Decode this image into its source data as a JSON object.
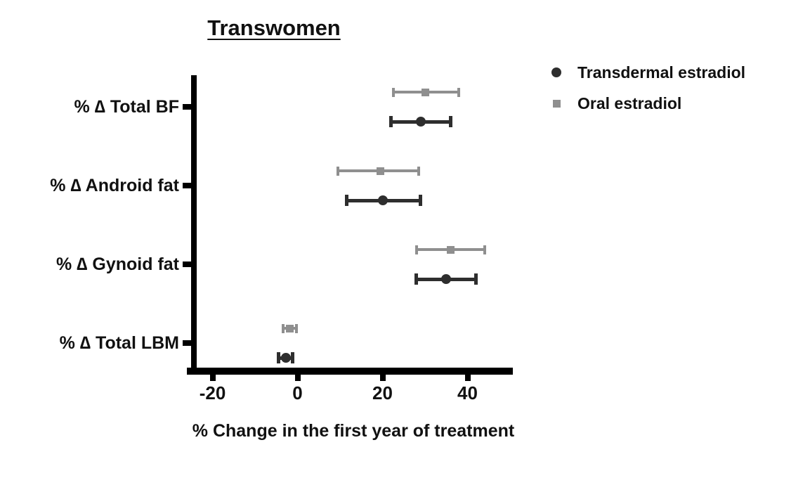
{
  "chart_data": {
    "type": "scatter",
    "subtype": "forest-plot-dot-with-error-bars",
    "title": "Transwomen",
    "xlabel": "% Change in the first year of treatment",
    "ylabel": "",
    "categories": [
      "% ∆ Total BF",
      "% ∆ Android fat",
      "% ∆ Gynoid fat",
      "% ∆ Total LBM"
    ],
    "x_ticks": [
      -20,
      0,
      20,
      40
    ],
    "xlim": [
      -25,
      51
    ],
    "grid": false,
    "legend_position": "top-right",
    "series": [
      {
        "name": "Transdermal estradiol",
        "marker": "circle",
        "color": "#2e2e2e",
        "points": [
          {
            "category": "% ∆ Total BF",
            "mean": 29,
            "lo": 22,
            "hi": 36
          },
          {
            "category": "% ∆ Android fat",
            "mean": 20,
            "lo": 11.5,
            "hi": 29
          },
          {
            "category": "% ∆ Gynoid fat",
            "mean": 35,
            "lo": 28,
            "hi": 42
          },
          {
            "category": "% ∆ Total LBM",
            "mean": -2.8,
            "lo": -4.5,
            "hi": -1.1
          }
        ]
      },
      {
        "name": "Oral estradiol",
        "marker": "square",
        "color": "#8f8f8f",
        "points": [
          {
            "category": "% ∆ Total BF",
            "mean": 30,
            "lo": 22.5,
            "hi": 38
          },
          {
            "category": "% ∆ Android fat",
            "mean": 19.5,
            "lo": 9.5,
            "hi": 28.5
          },
          {
            "category": "% ∆ Gynoid fat",
            "mean": 36,
            "lo": 28,
            "hi": 44
          },
          {
            "category": "% ∆ Total LBM",
            "mean": -1.8,
            "lo": -3.4,
            "hi": -0.2
          }
        ]
      }
    ]
  }
}
